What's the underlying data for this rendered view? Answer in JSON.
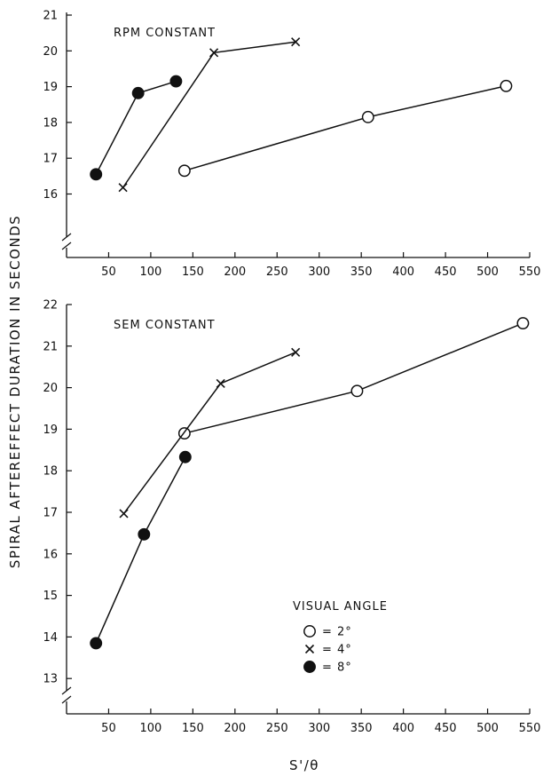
{
  "figure": {
    "ylabel": "SPIRAL AFTEREFFECT DURATION IN SECONDS",
    "xlabel": "S'/θ"
  },
  "chart_data": [
    {
      "type": "line",
      "title": "RPM CONSTANT",
      "xlim": [
        0,
        550
      ],
      "x_ticks": [
        50,
        100,
        150,
        200,
        250,
        300,
        350,
        400,
        450,
        500,
        550
      ],
      "ylim": [
        15.4,
        21
      ],
      "y_ticks": [
        16,
        17,
        18,
        19,
        20,
        21
      ],
      "axis_break": true,
      "grid": false,
      "series": [
        {
          "name": "2°",
          "marker": "open-circle",
          "x": [
            140,
            358,
            522
          ],
          "y": [
            16.65,
            18.15,
            19.02
          ]
        },
        {
          "name": "4°",
          "marker": "x",
          "x": [
            67,
            175,
            272
          ],
          "y": [
            16.18,
            19.95,
            20.25
          ]
        },
        {
          "name": "8°",
          "marker": "filled-circle",
          "x": [
            35,
            85,
            130
          ],
          "y": [
            16.55,
            18.82,
            19.15
          ]
        }
      ]
    },
    {
      "type": "line",
      "title": "SEM CONSTANT",
      "xlim": [
        0,
        550
      ],
      "x_ticks": [
        50,
        100,
        150,
        200,
        250,
        300,
        350,
        400,
        450,
        500,
        550
      ],
      "ylim": [
        12.2,
        22
      ],
      "y_ticks": [
        13,
        14,
        15,
        16,
        17,
        18,
        19,
        20,
        21,
        22
      ],
      "axis_break": true,
      "grid": false,
      "legend": {
        "title": "VISUAL ANGLE",
        "placement": "lower-right",
        "entries": [
          {
            "marker": "open-circle",
            "label": "= 2°"
          },
          {
            "marker": "x",
            "label": "= 4°"
          },
          {
            "marker": "filled-circle",
            "label": "= 8°"
          }
        ]
      },
      "series": [
        {
          "name": "2°",
          "marker": "open-circle",
          "x": [
            140,
            345,
            542
          ],
          "y": [
            18.9,
            19.92,
            21.55
          ]
        },
        {
          "name": "4°",
          "marker": "x",
          "x": [
            68,
            183,
            272
          ],
          "y": [
            16.97,
            20.1,
            20.85
          ]
        },
        {
          "name": "8°",
          "marker": "filled-circle",
          "x": [
            35,
            92,
            141
          ],
          "y": [
            13.85,
            16.47,
            18.33
          ]
        }
      ]
    }
  ]
}
